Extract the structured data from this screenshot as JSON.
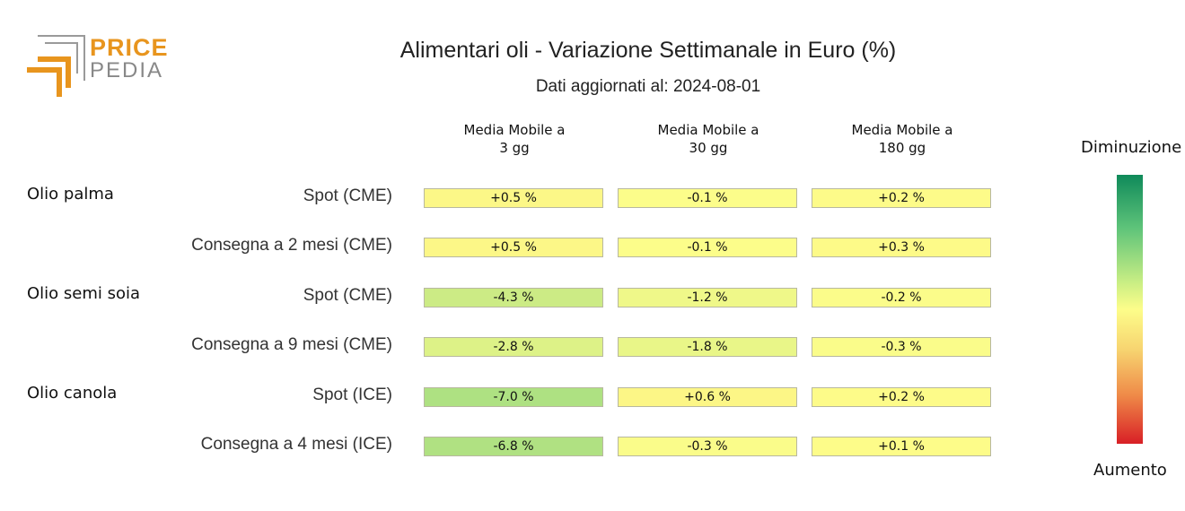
{
  "logo": {
    "line1": "PRICE",
    "line2": "PEDIA"
  },
  "chart_data": {
    "type": "table",
    "title": "Alimentari oli - Variazione Settimanale in Euro (%)",
    "subtitle": "Dati aggiornati al: 2024-08-01",
    "columns": [
      {
        "line1": "Media Mobile a",
        "line2": "3 gg"
      },
      {
        "line1": "Media Mobile a",
        "line2": "30 gg"
      },
      {
        "line1": "Media Mobile a",
        "line2": "180 gg"
      }
    ],
    "groups": [
      "Olio palma",
      "Olio semi soia",
      "Olio canola"
    ],
    "rows": [
      {
        "group": "Olio palma",
        "label": "Spot (CME)",
        "values": [
          0.5,
          -0.1,
          0.2
        ],
        "texts": [
          "+0.5 %",
          "-0.1 %",
          "+0.2 %"
        ]
      },
      {
        "group": "Olio palma",
        "label": "Consegna a 2 mesi (CME)",
        "values": [
          0.5,
          -0.1,
          0.3
        ],
        "texts": [
          "+0.5 %",
          "-0.1 %",
          "+0.3 %"
        ]
      },
      {
        "group": "Olio semi soia",
        "label": "Spot (CME)",
        "values": [
          -4.3,
          -1.2,
          -0.2
        ],
        "texts": [
          "-4.3 %",
          "-1.2 %",
          "-0.2 %"
        ]
      },
      {
        "group": "Olio semi soia",
        "label": "Consegna a 9 mesi (CME)",
        "values": [
          -2.8,
          -1.8,
          -0.3
        ],
        "texts": [
          "-2.8 %",
          "-1.8 %",
          "-0.3 %"
        ]
      },
      {
        "group": "Olio canola",
        "label": "Spot (ICE)",
        "values": [
          -7.0,
          0.6,
          0.2
        ],
        "texts": [
          "-7.0 %",
          "+0.6 %",
          "+0.2 %"
        ]
      },
      {
        "group": "Olio canola",
        "label": "Consegna a 4 mesi (ICE)",
        "values": [
          -6.8,
          -0.3,
          0.1
        ],
        "texts": [
          "-6.8 %",
          "-0.3 %",
          "+0.1 %"
        ]
      }
    ],
    "legend": {
      "top": "Diminuzione",
      "bottom": "Aumento"
    },
    "colors": {
      "decrease_strong": "#0f8a5a",
      "neutral": "#fdfd8a",
      "increase_strong": "#d81f26"
    }
  }
}
